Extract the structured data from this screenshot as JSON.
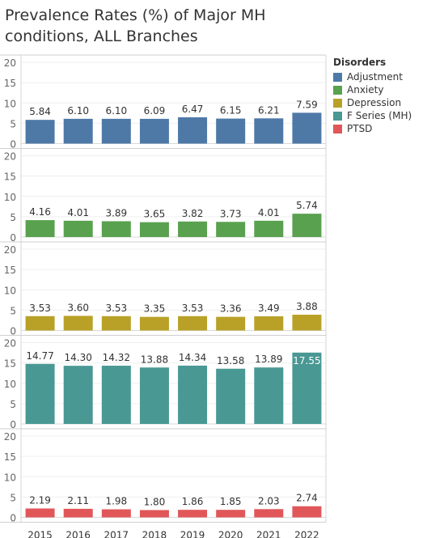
{
  "title": "Prevalence Rates (%) of Major MH conditions, ALL Branches",
  "legend": {
    "title": "Disorders",
    "items": [
      {
        "name": "Adjustment",
        "color": "#4e79a7"
      },
      {
        "name": "Anxiety",
        "color": "#59a14f"
      },
      {
        "name": "Depression",
        "color": "#b9a128"
      },
      {
        "name": "F Series (MH)",
        "color": "#499894"
      },
      {
        "name": "PTSD",
        "color": "#e15759"
      }
    ]
  },
  "chart_data": {
    "type": "bar",
    "categories": [
      "2015",
      "2016",
      "2017",
      "2018",
      "2019",
      "2020",
      "2021",
      "2022"
    ],
    "ylim": [
      0,
      20
    ],
    "yticks": [
      0,
      5,
      10,
      15,
      20
    ],
    "legend_position": "right",
    "series": [
      {
        "name": "Adjustment",
        "color": "#4e79a7",
        "values": [
          5.84,
          6.1,
          6.1,
          6.09,
          6.47,
          6.15,
          6.21,
          7.59
        ],
        "labels": [
          "5.84",
          "6.10",
          "6.10",
          "6.09",
          "6.47",
          "6.15",
          "6.21",
          "7.59"
        ]
      },
      {
        "name": "Anxiety",
        "color": "#59a14f",
        "values": [
          4.16,
          4.01,
          3.89,
          3.65,
          3.82,
          3.73,
          4.01,
          5.74
        ],
        "labels": [
          "4.16",
          "4.01",
          "3.89",
          "3.65",
          "3.82",
          "3.73",
          "4.01",
          "5.74"
        ]
      },
      {
        "name": "Depression",
        "color": "#b9a128",
        "values": [
          3.53,
          3.6,
          3.53,
          3.35,
          3.53,
          3.36,
          3.49,
          3.88
        ],
        "labels": [
          "3.53",
          "3.60",
          "3.53",
          "3.35",
          "3.53",
          "3.36",
          "3.49",
          "3.88"
        ]
      },
      {
        "name": "F Series (MH)",
        "color": "#499894",
        "values": [
          14.77,
          14.3,
          14.32,
          13.88,
          14.34,
          13.58,
          13.89,
          17.55
        ],
        "labels": [
          "14.77",
          "14.30",
          "14.32",
          "13.88",
          "14.34",
          "13.58",
          "13.89",
          "17.55"
        ]
      },
      {
        "name": "PTSD",
        "color": "#e15759",
        "values": [
          2.19,
          2.11,
          1.98,
          1.8,
          1.86,
          1.85,
          2.03,
          2.74
        ],
        "labels": [
          "2.19",
          "2.11",
          "1.98",
          "1.80",
          "1.86",
          "1.85",
          "2.03",
          "2.74"
        ]
      }
    ]
  }
}
